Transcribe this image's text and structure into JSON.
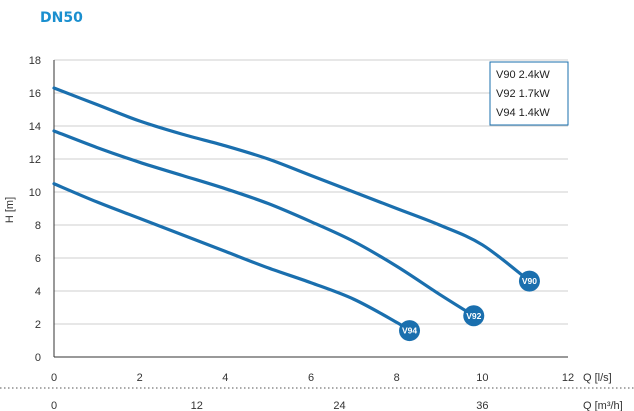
{
  "page": {
    "heading": "DN50",
    "accent_color": "#1a8fcf",
    "curve_color": "#1a6fae"
  },
  "chart_data": {
    "type": "line",
    "title": "DN50",
    "ylabel": "H [m]",
    "xlabel": "Q [l/s]",
    "x2label": "Q [m³/h]",
    "xlim": [
      0,
      12
    ],
    "ylim": [
      0,
      18
    ],
    "x_ticks": [
      0,
      2,
      4,
      6,
      8,
      10,
      12
    ],
    "y_ticks": [
      0,
      2,
      4,
      6,
      8,
      10,
      12,
      14,
      16,
      18
    ],
    "x2_ticks": [
      0,
      12,
      24,
      36
    ],
    "x2_tick_positions_ls": [
      0,
      3.3333,
      6.6667,
      10
    ],
    "grid": "horizontal",
    "legend": {
      "placement": "top-right",
      "entries": [
        "V90 2.4kW",
        "V92 1.7kW",
        "V94 1.4kW"
      ]
    },
    "series": [
      {
        "name": "V90",
        "label": "V90",
        "x": [
          0,
          1,
          2,
          3,
          4,
          5,
          6,
          7,
          8,
          9,
          10,
          11.1
        ],
        "values": [
          16.3,
          15.3,
          14.3,
          13.5,
          12.8,
          12.0,
          11.0,
          10.0,
          9.0,
          8.0,
          6.8,
          4.6
        ]
      },
      {
        "name": "V92",
        "label": "V92",
        "x": [
          0,
          1,
          2,
          3,
          4,
          5,
          6,
          7,
          8,
          9,
          9.8
        ],
        "values": [
          13.7,
          12.7,
          11.8,
          11.0,
          10.2,
          9.3,
          8.2,
          7.0,
          5.5,
          3.8,
          2.5
        ]
      },
      {
        "name": "V94",
        "label": "V94",
        "x": [
          0,
          1,
          2,
          3,
          4,
          5,
          6,
          7,
          8,
          8.3
        ],
        "values": [
          10.5,
          9.4,
          8.4,
          7.4,
          6.4,
          5.4,
          4.5,
          3.5,
          2.1,
          1.6
        ]
      }
    ]
  }
}
